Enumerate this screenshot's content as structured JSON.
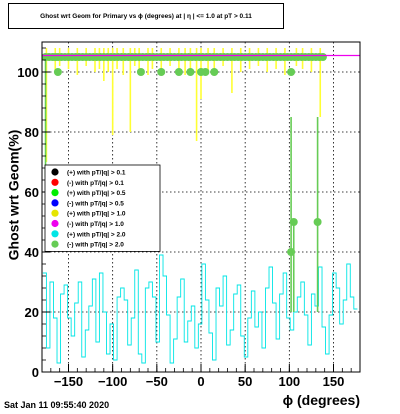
{
  "chart_data": {
    "type": "scatter",
    "title": "Ghost wrt Geom for Primary vs ϕ (degrees) at | η | <= 1.0 at pT > 0.11",
    "xlabel": "ϕ (degrees)",
    "ylabel": "Ghost wrt Geom(%)",
    "xlim": [
      -180,
      180
    ],
    "ylim": [
      0,
      110
    ],
    "x_ticks": [
      -150,
      -100,
      -50,
      0,
      50,
      100,
      150
    ],
    "x_tick_labels": [
      "−150",
      "−100",
      "−50",
      "0",
      "50",
      "100",
      "150"
    ],
    "y_ticks": [
      0,
      20,
      40,
      60,
      80,
      100
    ],
    "y_tick_labels": [
      "0",
      "20",
      "40",
      "60",
      "80",
      "100"
    ],
    "grid": true,
    "legend_position": "left-middle",
    "legend": [
      {
        "label": "(+) with pT/|q| > 0.1",
        "color": "#000000"
      },
      {
        "label": "(-) with pT/|q| > 0.1",
        "color": "#ff0000"
      },
      {
        "label": "(+) with pT/|q| > 0.5",
        "color": "#00ee00"
      },
      {
        "label": "(-) with pT/|q| > 0.5",
        "color": "#0000ff"
      },
      {
        "label": "(+) with pT/|q| > 1.0",
        "color": "#e5e500"
      },
      {
        "label": "(-) with pT/|q| > 1.0",
        "color": "#ee00ee"
      },
      {
        "label": "(+) with pT/|q| > 2.0",
        "color": "#00e5e5"
      },
      {
        "label": "(-) with pT/|q| > 2.0",
        "color": "#66cc55"
      }
    ],
    "series": [
      {
        "name": "(+) with pT/|q| > 2.0",
        "type": "step",
        "color": "#00e5e5",
        "x": [
          -177,
          -173,
          -169,
          -165,
          -161,
          -157,
          -153,
          -149,
          -145,
          -141,
          -137,
          -133,
          -129,
          -125,
          -121,
          -117,
          -113,
          -109,
          -105,
          -101,
          -97,
          -93,
          -89,
          -85,
          -81,
          -77,
          -73,
          -69,
          -65,
          -61,
          -57,
          -53,
          -49,
          -45,
          -41,
          -37,
          -33,
          -29,
          -25,
          -21,
          -17,
          -13,
          -9,
          -5,
          -1,
          3,
          7,
          11,
          15,
          19,
          23,
          27,
          31,
          35,
          39,
          43,
          47,
          51,
          55,
          59,
          63,
          67,
          71,
          75,
          79,
          83,
          87,
          91,
          95,
          99,
          103,
          107,
          111,
          115,
          119,
          123,
          127,
          131,
          135,
          139,
          143,
          147,
          151,
          155,
          159,
          163,
          167,
          171,
          175
        ],
        "values": [
          33,
          8,
          30,
          18,
          3,
          26,
          29,
          18,
          12,
          23,
          30,
          5,
          14,
          22,
          31,
          10,
          33,
          20,
          6,
          16,
          4,
          25,
          28,
          24,
          9,
          18,
          34,
          6,
          3,
          28,
          30,
          25,
          10,
          39,
          32,
          19,
          3,
          11,
          25,
          31,
          10,
          17,
          22,
          8,
          16,
          36,
          24,
          13,
          4,
          28,
          22,
          32,
          9,
          14,
          26,
          29,
          12,
          5,
          18,
          27,
          15,
          20,
          8,
          28,
          35,
          23,
          11,
          26,
          33,
          18,
          14,
          20,
          25,
          30,
          19,
          9,
          26,
          22,
          35,
          15,
          6,
          19,
          33,
          28,
          16,
          24,
          36,
          25,
          21
        ]
      },
      {
        "name": "(+) with pT/|q| > 1.0",
        "type": "markers_with_errors",
        "color": "#ffff33",
        "x": [
          -175,
          -165,
          -160,
          -150,
          -140,
          -130,
          -120,
          -115,
          -110,
          -105,
          -100,
          -95,
          -88,
          -80,
          -75,
          -70,
          -60,
          -55,
          -45,
          -35,
          -25,
          -18,
          -12,
          -5,
          0,
          8,
          15,
          25,
          35,
          45,
          55,
          65,
          75,
          85,
          95,
          108,
          115,
          125,
          135
        ],
        "values": [
          105,
          105,
          105,
          105,
          105,
          105,
          105,
          105,
          105,
          105,
          105,
          105,
          105,
          105,
          105,
          105,
          105,
          105,
          105,
          105,
          105,
          105,
          105,
          105,
          105,
          105,
          105,
          105,
          105,
          105,
          105,
          105,
          105,
          105,
          105,
          105,
          105,
          105,
          105
        ],
        "err_low": [
          35,
          5,
          3,
          4,
          6,
          3,
          5,
          4,
          8,
          5,
          26,
          4,
          6,
          25,
          3,
          5,
          6,
          4,
          5,
          3,
          4,
          6,
          5,
          28,
          14,
          5,
          4,
          3,
          12,
          5,
          4,
          3,
          5,
          4,
          6,
          3,
          4,
          5,
          20
        ],
        "err_high": [
          3,
          3,
          3,
          3,
          3,
          3,
          3,
          3,
          3,
          3,
          3,
          3,
          3,
          3,
          3,
          3,
          3,
          3,
          3,
          3,
          3,
          3,
          3,
          3,
          3,
          3,
          3,
          3,
          3,
          3,
          3,
          3,
          3,
          3,
          3,
          3,
          3,
          3,
          3
        ]
      },
      {
        "name": "(-) with pT/|q| > 2.0",
        "type": "markers_with_errors",
        "color": "#66cc55",
        "x": [
          -176,
          -172,
          -168,
          -165,
          -162,
          -158,
          -154,
          -150,
          -146,
          -142,
          -138,
          -134,
          -130,
          -126,
          -122,
          -118,
          -114,
          -110,
          -106,
          -102,
          -98,
          -94,
          -90,
          -86,
          -82,
          -78,
          -74,
          -70,
          -66,
          -62,
          -58,
          -54,
          -50,
          -46,
          -42,
          -38,
          -34,
          -30,
          -26,
          -22,
          -18,
          -14,
          -10,
          -6,
          -2,
          2,
          6,
          10,
          14,
          18,
          22,
          26,
          30,
          34,
          38,
          42,
          46,
          50,
          54,
          58,
          62,
          66,
          70,
          74,
          78,
          82,
          86,
          90,
          94,
          98,
          102,
          106,
          110,
          114,
          118,
          122,
          126,
          130,
          134,
          138,
          -162,
          -68,
          -45,
          -25,
          -12,
          0,
          5,
          15,
          102,
          102,
          105,
          132
        ],
        "values": [
          105,
          105,
          105,
          105,
          105,
          105,
          105,
          105,
          105,
          105,
          105,
          105,
          105,
          105,
          105,
          105,
          105,
          105,
          105,
          105,
          105,
          105,
          105,
          105,
          105,
          105,
          105,
          105,
          105,
          105,
          105,
          105,
          105,
          105,
          105,
          105,
          105,
          105,
          105,
          105,
          105,
          105,
          105,
          105,
          105,
          105,
          105,
          105,
          105,
          105,
          105,
          105,
          105,
          105,
          105,
          105,
          105,
          105,
          105,
          105,
          105,
          105,
          105,
          105,
          105,
          105,
          105,
          105,
          105,
          105,
          105,
          105,
          105,
          105,
          105,
          105,
          105,
          105,
          105,
          105,
          100,
          100,
          100,
          100,
          100,
          100,
          100,
          100,
          100,
          40,
          50,
          50
        ],
        "err_low": [
          40,
          0,
          0,
          0,
          0,
          0,
          0,
          0,
          0,
          0,
          0,
          0,
          0,
          0,
          0,
          0,
          0,
          0,
          0,
          0,
          0,
          0,
          0,
          0,
          0,
          0,
          0,
          0,
          0,
          0,
          0,
          0,
          0,
          0,
          0,
          0,
          0,
          0,
          0,
          0,
          0,
          0,
          0,
          0,
          0,
          0,
          0,
          0,
          0,
          0,
          0,
          0,
          0,
          0,
          0,
          0,
          0,
          0,
          0,
          0,
          0,
          0,
          0,
          0,
          0,
          0,
          0,
          0,
          0,
          0,
          0,
          0,
          0,
          0,
          0,
          0,
          0,
          0,
          0,
          0,
          0,
          0,
          0,
          0,
          0,
          0,
          0,
          0,
          0,
          20,
          30,
          30
        ],
        "err_high": [
          0,
          0,
          0,
          0,
          0,
          0,
          0,
          0,
          0,
          0,
          0,
          0,
          0,
          0,
          0,
          0,
          0,
          0,
          0,
          0,
          0,
          0,
          0,
          0,
          0,
          0,
          0,
          0,
          0,
          0,
          0,
          0,
          0,
          0,
          0,
          0,
          0,
          0,
          0,
          0,
          0,
          0,
          0,
          0,
          0,
          0,
          0,
          0,
          0,
          0,
          0,
          0,
          0,
          0,
          0,
          0,
          0,
          0,
          0,
          0,
          0,
          0,
          0,
          0,
          0,
          0,
          0,
          0,
          0,
          0,
          0,
          0,
          0,
          0,
          0,
          0,
          0,
          0,
          0,
          0,
          0,
          0,
          0,
          0,
          0,
          0,
          0,
          0,
          0,
          45,
          0,
          35
        ]
      },
      {
        "name": "(-) with pT/|q| > 1.0",
        "type": "line",
        "color": "#ee00ee",
        "x": [
          -180,
          180
        ],
        "values": [
          105.5,
          105.5
        ]
      }
    ]
  },
  "footer": {
    "timestamp": "Sat Jan 11 09:55:40 2020"
  }
}
